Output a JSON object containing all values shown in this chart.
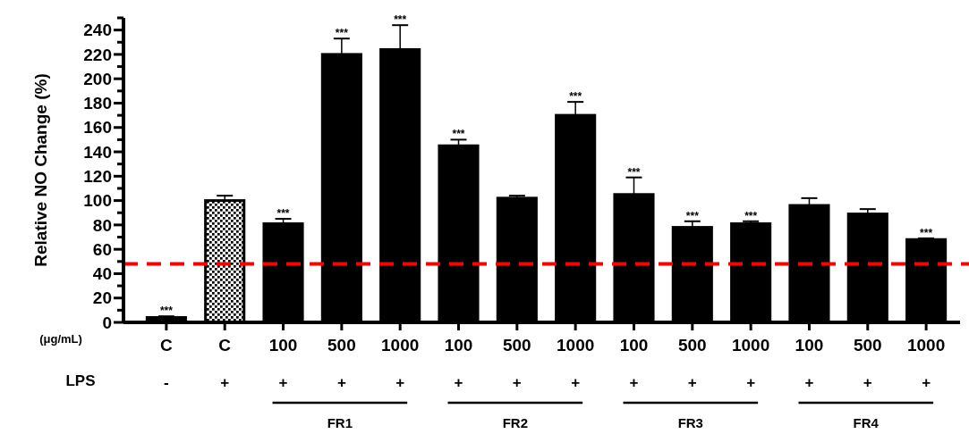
{
  "chart_data": {
    "type": "bar",
    "ylabel": "Relative NO Change (%)",
    "categories": [
      "C",
      "C",
      "100",
      "500",
      "1000",
      "100",
      "500",
      "1000",
      "100",
      "500",
      "1000",
      "100",
      "500",
      "1000"
    ],
    "values": [
      4,
      100,
      81,
      220,
      224,
      145,
      102,
      170,
      105,
      78,
      81,
      96,
      89,
      68
    ],
    "errors": [
      [
        4,
        5
      ],
      [
        100,
        104
      ],
      [
        81,
        85
      ],
      [
        220,
        233
      ],
      [
        224,
        244
      ],
      [
        145,
        150
      ],
      [
        102,
        104
      ],
      [
        170,
        181
      ],
      [
        105,
        119
      ],
      [
        78,
        83
      ],
      [
        81,
        83
      ],
      [
        96,
        102
      ],
      [
        89,
        93
      ],
      [
        68,
        69
      ]
    ],
    "value_labels": [
      "***",
      null,
      "***",
      "***",
      "***",
      "***",
      null,
      "***",
      "***",
      "***",
      "***",
      null,
      null,
      "***"
    ],
    "colors": [
      "#000000",
      "#ffffff",
      "#000000",
      "#000000",
      "#000000",
      "#000000",
      "#000000",
      "#000000",
      "#000000",
      "#000000",
      "#000000",
      "#000000",
      "#000000",
      "#000000"
    ],
    "ylim": [
      0,
      250
    ],
    "yticks": [
      0,
      {
        "value": 10,
        "label": null
      },
      20,
      {
        "value": 30,
        "label": null
      },
      40,
      {
        "value": 50,
        "label": null
      },
      60,
      {
        "value": 70,
        "label": null
      },
      80,
      {
        "value": 90,
        "label": null
      },
      100,
      {
        "value": 110,
        "label": null
      },
      120,
      {
        "value": 130,
        "label": null
      },
      140,
      {
        "value": 150,
        "label": null
      },
      160,
      {
        "value": 170,
        "label": null
      },
      180,
      {
        "value": 190,
        "label": null
      },
      200,
      {
        "value": 210,
        "label": null
      },
      220,
      {
        "value": 230,
        "label": null
      },
      240,
      {
        "value": 250,
        "label": null
      }
    ],
    "ref_lines": [
      {
        "axis": "y",
        "value": 48,
        "color": "#ff0000",
        "line_style": "dashed"
      }
    ],
    "annotations": [
      "(μg/mL)",
      "LPS",
      "-",
      "+",
      "+",
      "+",
      "+",
      "+",
      "+",
      "+",
      "+",
      "+",
      "+",
      "+",
      "+",
      "+",
      "FR1",
      "FR2",
      "FR3",
      "FR4"
    ],
    "grid": false
  }
}
